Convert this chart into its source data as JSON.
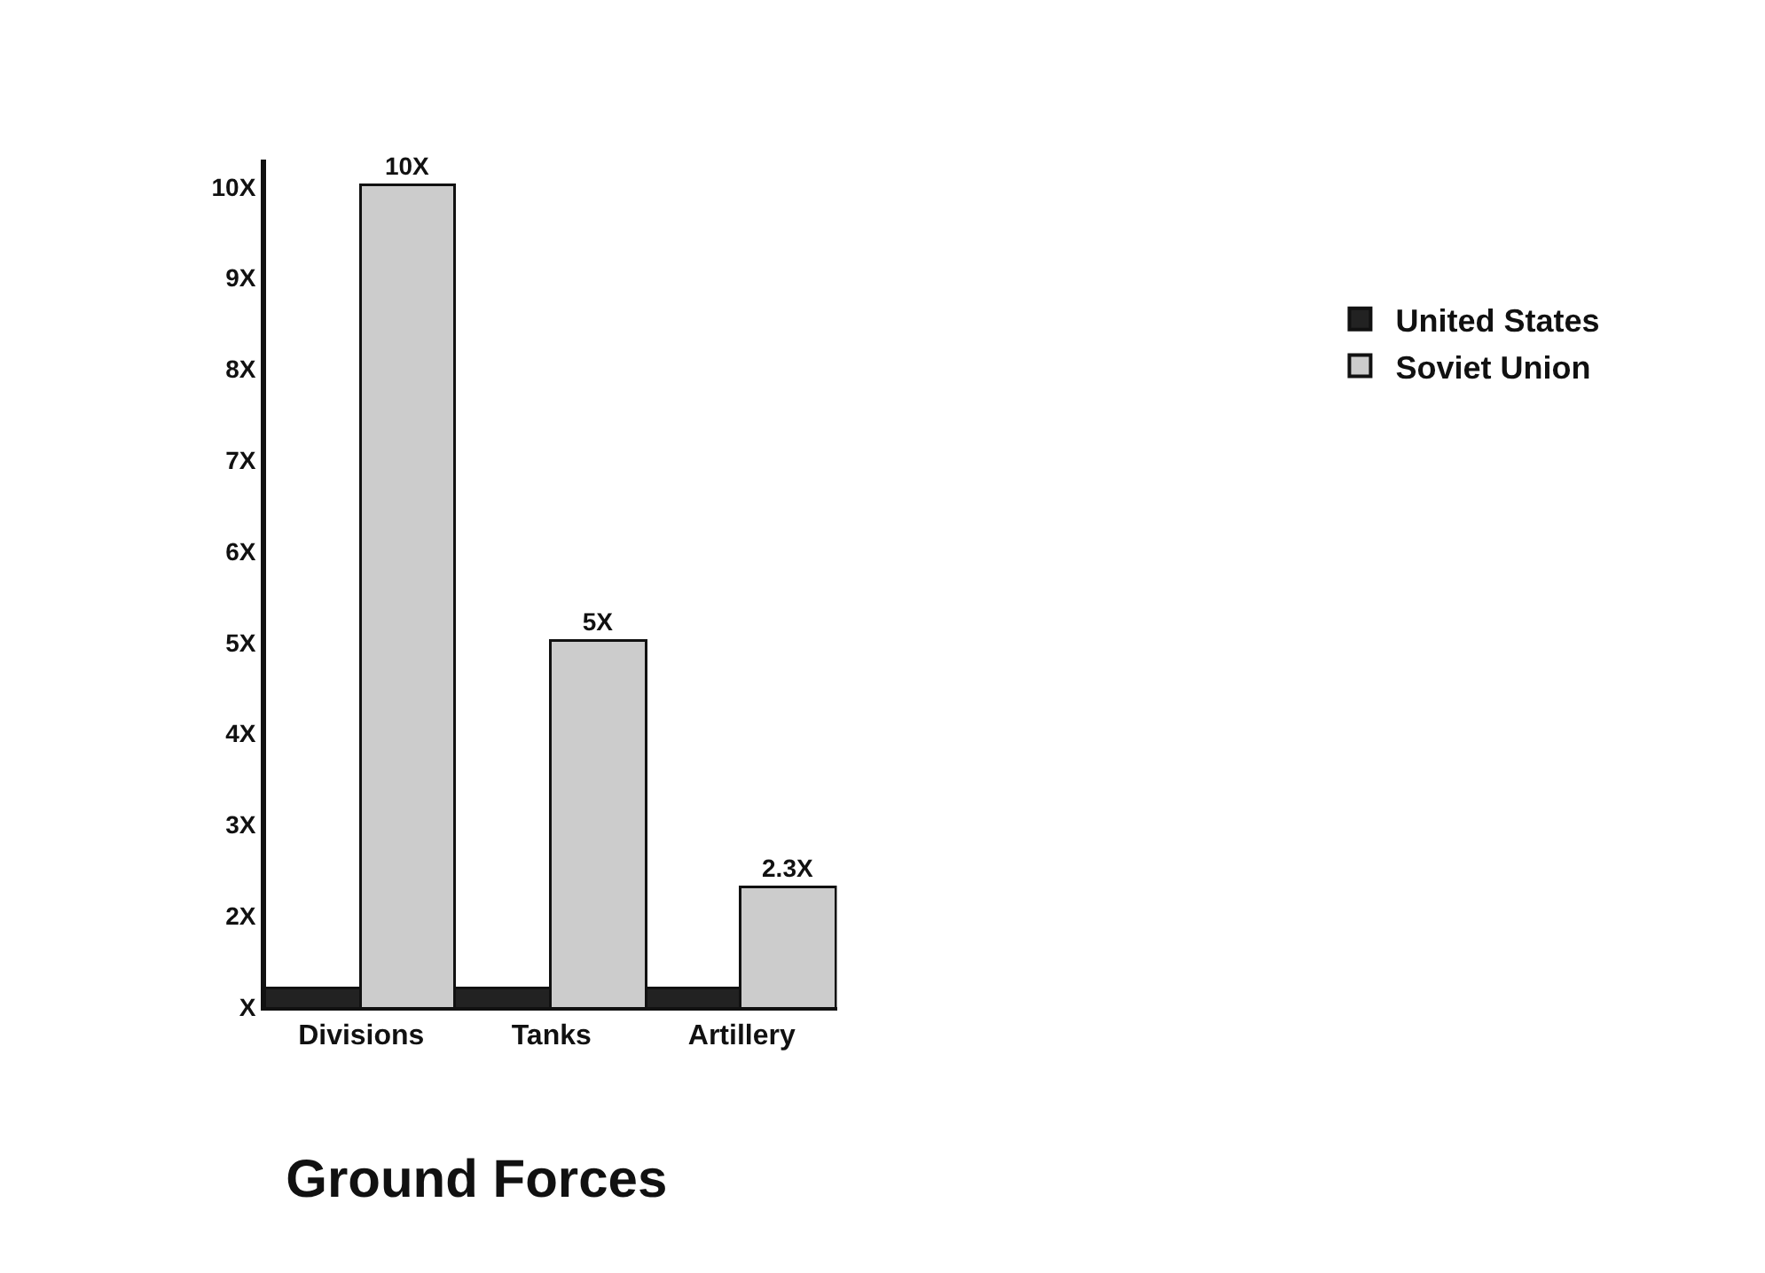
{
  "chart_data": {
    "type": "bar",
    "title": "Ground Forces",
    "categories": [
      "Divisions",
      "Tanks",
      "Artillery"
    ],
    "series": [
      {
        "name": "United States",
        "color": "#222222",
        "values": [
          1.2,
          1.2,
          1.2
        ]
      },
      {
        "name": "Soviet Union",
        "color": "#cccccc",
        "values": [
          10,
          5,
          2.3
        ],
        "value_labels": [
          "10X",
          "5X",
          "2.3X"
        ]
      }
    ],
    "ylim": [
      1,
      10.3
    ],
    "yticks": [
      {
        "value": 1,
        "label": "X"
      },
      {
        "value": 2,
        "label": "2X"
      },
      {
        "value": 3,
        "label": "3X"
      },
      {
        "value": 4,
        "label": "4X"
      },
      {
        "value": 5,
        "label": "5X"
      },
      {
        "value": 6,
        "label": "6X"
      },
      {
        "value": 7,
        "label": "7X"
      },
      {
        "value": 8,
        "label": "8X"
      },
      {
        "value": 9,
        "label": "9X"
      },
      {
        "value": 10,
        "label": "10X"
      }
    ],
    "legend": "right"
  }
}
